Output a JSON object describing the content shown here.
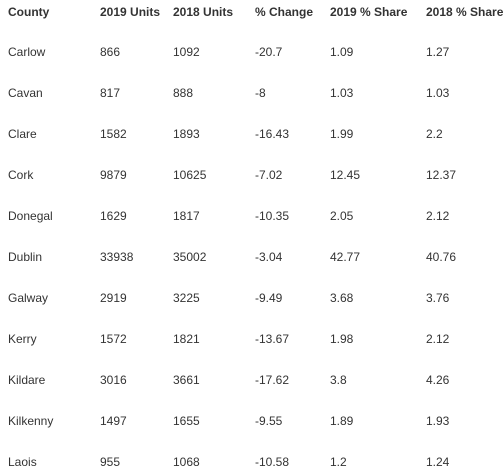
{
  "table": {
    "headers": [
      "County",
      "2019 Units",
      "2018 Units",
      "% Change",
      "2019 % Share",
      "2018 % Share"
    ],
    "rows": [
      [
        "Carlow",
        "866",
        "1092",
        "-20.7",
        "1.09",
        "1.27"
      ],
      [
        "Cavan",
        "817",
        "888",
        "-8",
        "1.03",
        "1.03"
      ],
      [
        "Clare",
        "1582",
        "1893",
        "-16.43",
        "1.99",
        "2.2"
      ],
      [
        "Cork",
        "9879",
        "10625",
        "-7.02",
        "12.45",
        "12.37"
      ],
      [
        "Donegal",
        "1629",
        "1817",
        "-10.35",
        "2.05",
        "2.12"
      ],
      [
        "Dublin",
        "33938",
        "35002",
        "-3.04",
        "42.77",
        "40.76"
      ],
      [
        "Galway",
        "2919",
        "3225",
        "-9.49",
        "3.68",
        "3.76"
      ],
      [
        "Kerry",
        "1572",
        "1821",
        "-13.67",
        "1.98",
        "2.12"
      ],
      [
        "Kildare",
        "3016",
        "3661",
        "-17.62",
        "3.8",
        "4.26"
      ],
      [
        "Kilkenny",
        "1497",
        "1655",
        "-9.55",
        "1.89",
        "1.93"
      ],
      [
        "Laois",
        "955",
        "1068",
        "-10.58",
        "1.2",
        "1.24"
      ]
    ]
  }
}
